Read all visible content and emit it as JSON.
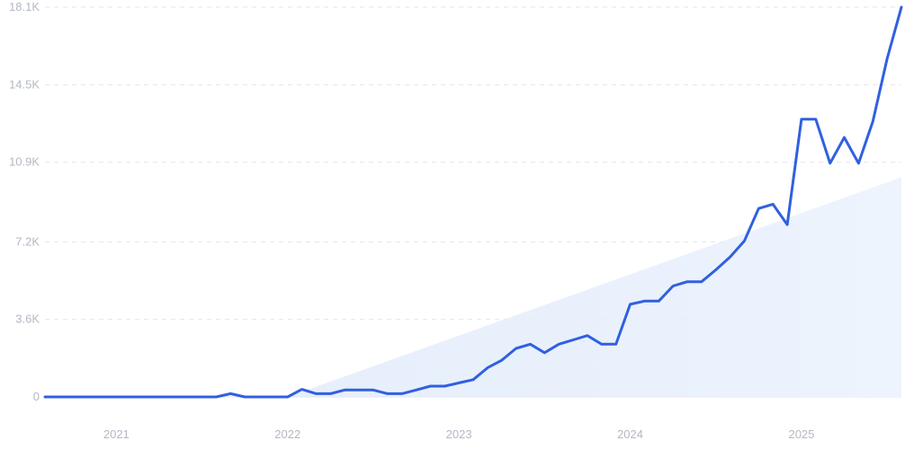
{
  "chart_data": {
    "type": "line",
    "title": "",
    "xlabel": "",
    "ylabel": "",
    "ylim": [
      0,
      18100
    ],
    "xlim": [
      "2020-08",
      "2025-08"
    ],
    "grid": true,
    "yticks": [
      {
        "value": 0,
        "label": "0"
      },
      {
        "value": 3600,
        "label": "3.6K"
      },
      {
        "value": 7200,
        "label": "7.2K"
      },
      {
        "value": 10900,
        "label": "10.9K"
      },
      {
        "value": 14500,
        "label": "14.5K"
      },
      {
        "value": 18100,
        "label": "18.1K"
      }
    ],
    "xticks": [
      {
        "value": "2021-01",
        "label": "2021"
      },
      {
        "value": "2022-01",
        "label": "2022"
      },
      {
        "value": "2023-01",
        "label": "2023"
      },
      {
        "value": "2024-01",
        "label": "2024"
      },
      {
        "value": "2025-01",
        "label": "2025"
      }
    ],
    "colors": {
      "line": "#3060e0",
      "trend_fill": "#e8f0fc"
    },
    "trend": {
      "x": [
        "2022-01",
        "2025-08"
      ],
      "y": [
        0,
        10200
      ]
    },
    "series": [
      {
        "x": [
          "2020-08",
          "2020-09",
          "2020-10",
          "2020-11",
          "2020-12",
          "2021-01",
          "2021-02",
          "2021-03",
          "2021-04",
          "2021-05",
          "2021-06",
          "2021-07",
          "2021-08",
          "2021-09",
          "2021-10",
          "2021-11",
          "2021-12",
          "2022-01",
          "2022-02",
          "2022-03",
          "2022-04",
          "2022-05",
          "2022-06",
          "2022-07",
          "2022-08",
          "2022-09",
          "2022-10",
          "2022-11",
          "2022-12",
          "2023-01",
          "2023-02",
          "2023-03",
          "2023-04",
          "2023-05",
          "2023-06",
          "2023-07",
          "2023-08",
          "2023-09",
          "2023-10",
          "2023-11",
          "2023-12",
          "2024-01",
          "2024-02",
          "2024-03",
          "2024-04",
          "2024-05",
          "2024-06",
          "2024-07",
          "2024-08",
          "2024-09",
          "2024-10",
          "2024-11",
          "2024-12",
          "2025-01",
          "2025-02",
          "2025-03",
          "2025-04",
          "2025-05",
          "2025-06",
          "2025-07",
          "2025-08"
        ],
        "y": [
          0,
          0,
          0,
          0,
          0,
          0,
          0,
          0,
          0,
          0,
          0,
          0,
          0,
          150,
          0,
          0,
          0,
          0,
          350,
          150,
          150,
          320,
          320,
          320,
          150,
          150,
          320,
          500,
          500,
          650,
          800,
          1350,
          1700,
          2250,
          2450,
          2050,
          2450,
          2650,
          2850,
          2450,
          2450,
          4300,
          4450,
          4450,
          5150,
          5350,
          5350,
          5900,
          6500,
          7250,
          8750,
          8950,
          8000,
          12900,
          12900,
          10850,
          12050,
          10850,
          12800,
          15700,
          18100
        ]
      }
    ]
  }
}
